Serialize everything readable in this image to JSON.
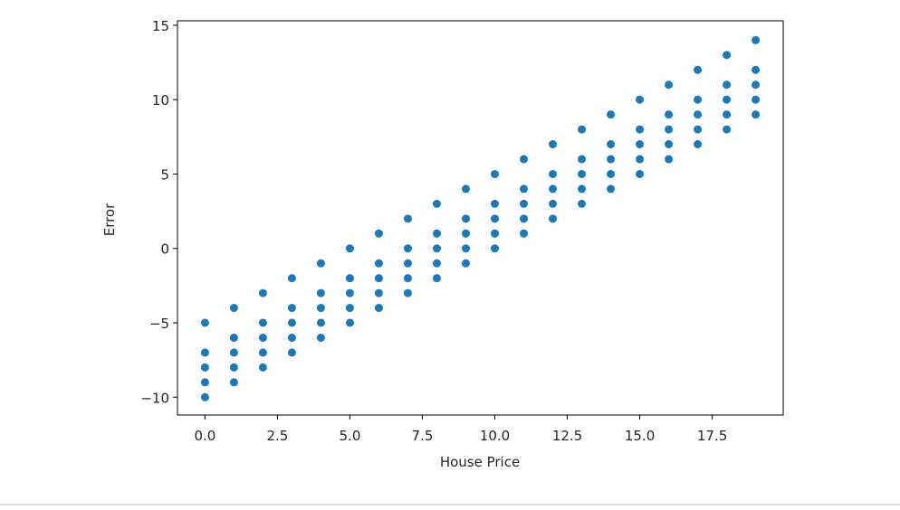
{
  "chart_data": {
    "type": "scatter",
    "xlabel": "House Price",
    "ylabel": "Error",
    "color": "#1f77b4",
    "x": [
      0,
      0,
      0,
      0,
      0,
      1,
      1,
      1,
      1,
      1,
      2,
      2,
      2,
      2,
      2,
      3,
      3,
      3,
      3,
      3,
      4,
      4,
      4,
      4,
      4,
      5,
      5,
      5,
      5,
      5,
      6,
      6,
      6,
      6,
      6,
      7,
      7,
      7,
      7,
      7,
      8,
      8,
      8,
      8,
      8,
      9,
      9,
      9,
      9,
      9,
      10,
      10,
      10,
      10,
      10,
      11,
      11,
      11,
      11,
      11,
      12,
      12,
      12,
      12,
      12,
      13,
      13,
      13,
      13,
      13,
      14,
      14,
      14,
      14,
      14,
      15,
      15,
      15,
      15,
      15,
      16,
      16,
      16,
      16,
      16,
      17,
      17,
      17,
      17,
      17,
      18,
      18,
      18,
      18,
      18,
      19,
      19,
      19,
      19,
      19
    ],
    "values": [
      -5,
      -7,
      -8,
      -9,
      -10,
      -4,
      -6,
      -7,
      -8,
      -9,
      -3,
      -5,
      -6,
      -7,
      -8,
      -2,
      -4,
      -5,
      -6,
      -7,
      -1,
      -3,
      -4,
      -5,
      -6,
      0,
      -2,
      -3,
      -4,
      -5,
      1,
      -1,
      -2,
      -3,
      -4,
      2,
      0,
      -1,
      -2,
      -3,
      3,
      1,
      0,
      -1,
      -2,
      4,
      2,
      1,
      0,
      -1,
      5,
      3,
      2,
      1,
      0,
      6,
      4,
      3,
      2,
      1,
      7,
      5,
      4,
      3,
      2,
      8,
      6,
      5,
      4,
      3,
      9,
      7,
      6,
      5,
      4,
      10,
      8,
      7,
      6,
      5,
      11,
      9,
      8,
      7,
      6,
      12,
      10,
      9,
      8,
      7,
      13,
      11,
      10,
      9,
      8,
      14,
      12,
      11,
      10,
      9
    ],
    "xlim": [
      -0.95,
      19.95
    ],
    "ylim": [
      -11.2,
      15.3
    ],
    "xticks": [
      {
        "value": 0,
        "label": "0.0"
      },
      2.5,
      {
        "value": 5,
        "label": "5.0"
      },
      7.5,
      {
        "value": 10,
        "label": "10.0"
      },
      12.5,
      {
        "value": 15,
        "label": "15.0"
      },
      17.5
    ],
    "yticks": [
      {
        "value": -10,
        "label": "−10"
      },
      {
        "value": -5,
        "label": "−5"
      },
      0,
      5,
      10,
      15
    ],
    "grid": false
  }
}
